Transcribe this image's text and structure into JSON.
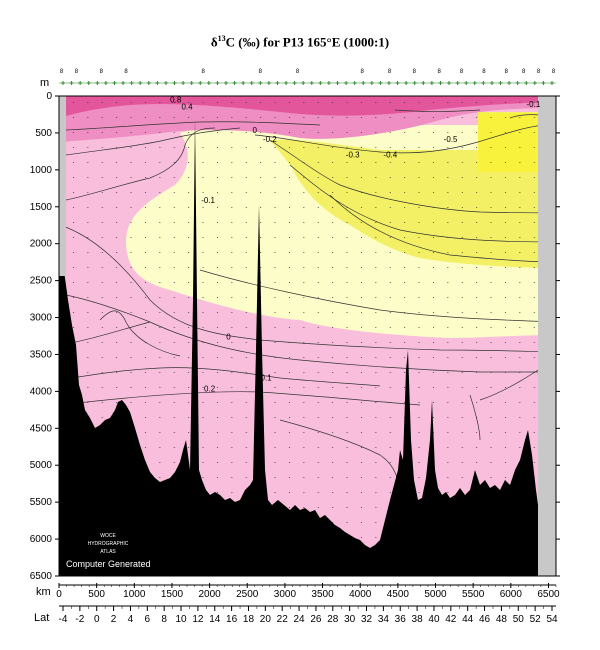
{
  "title": {
    "prefix": "δ",
    "sup": "13",
    "rest": "C (‰) for P13 165°E (1000:1)"
  },
  "chart_data": {
    "type": "heatmap",
    "title": "δ13C (‰) for P13 165°E (1000:1)",
    "ylabel": "m",
    "xlabel": "km",
    "x2label": "Lat",
    "ylim": [
      6500,
      0
    ],
    "xlim": [
      0,
      6600
    ],
    "y_ticks": [
      0,
      500,
      1000,
      1500,
      2000,
      2500,
      3000,
      3500,
      4000,
      4500,
      5000,
      5500,
      6000,
      6500
    ],
    "x_ticks": [
      0,
      500,
      1000,
      1500,
      2000,
      2500,
      3000,
      3500,
      4000,
      4500,
      5000,
      5500,
      6000,
      6500
    ],
    "lat_ticks": [
      "-4",
      "-2",
      "0",
      "2",
      "4",
      "6",
      "8",
      "10",
      "12",
      "14",
      "16",
      "18",
      "20",
      "22",
      "24",
      "26",
      "28",
      "30",
      "32",
      "34",
      "36",
      "38",
      "40",
      "42",
      "44",
      "46",
      "48",
      "50",
      "52",
      "54"
    ],
    "top_station_labels": [
      "8",
      "8",
      "8",
      "8",
      "8",
      "8",
      "8",
      "8",
      "8",
      "8",
      "8",
      "8",
      "8",
      "8",
      "8",
      "8",
      "8"
    ],
    "contour_levels": [
      -0.5,
      -0.4,
      -0.3,
      -0.2,
      -0.1,
      0,
      0.1,
      0.2,
      0.3,
      0.4,
      0.5,
      0.6,
      0.7,
      0.8
    ],
    "contour_labels": [
      {
        "text": "-0.1",
        "x": 6300,
        "y": 150
      },
      {
        "text": "0",
        "x": 2600,
        "y": 500
      },
      {
        "text": "-0.2",
        "x": 2800,
        "y": 620
      },
      {
        "text": "-0.5",
        "x": 5200,
        "y": 620
      },
      {
        "text": "-0.3",
        "x": 3900,
        "y": 830
      },
      {
        "text": "-0.4",
        "x": 4400,
        "y": 830
      },
      {
        "text": "-0.1",
        "x": 1980,
        "y": 1450
      },
      {
        "text": "0",
        "x": 2250,
        "y": 3300
      },
      {
        "text": "0.1",
        "x": 2750,
        "y": 3850
      },
      {
        "text": "0.2",
        "x": 2000,
        "y": 4000
      },
      {
        "text": "0.8",
        "x": 1550,
        "y": 90
      },
      {
        "text": "0.4",
        "x": 1700,
        "y": 180
      }
    ],
    "colors": {
      "yellow": "#f3f065",
      "pale_yellow": "#fdfdc9",
      "pink": "#f9bedc",
      "mid_pink": "#ee8ec2",
      "hot_pink": "#e3569b",
      "land": "#c8c8c8",
      "bottom": "#000000"
    }
  },
  "watermark": {
    "line1": "WOCE",
    "line2": "HYDROGRAPHIC",
    "line3": "ATLAS",
    "line4": "Computer Generated"
  }
}
